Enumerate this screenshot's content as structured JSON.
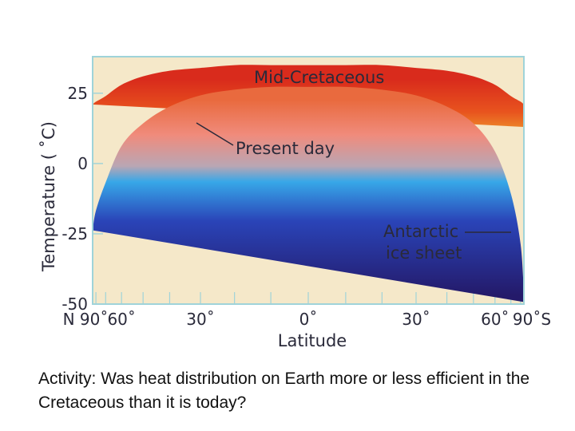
{
  "chart_data": {
    "type": "line",
    "xlabel": "Latitude",
    "ylabel": "Temperature ( ˚C)",
    "x_tick_labels": [
      "N 90˚",
      "60˚",
      "30˚",
      "0˚",
      "30˚",
      "60˚",
      "90˚S"
    ],
    "x_tick_values": [
      -90,
      -60,
      -30,
      0,
      30,
      60,
      90
    ],
    "y_tick_labels": [
      "25",
      "0",
      "-25",
      "-50"
    ],
    "y_tick_values": [
      25,
      0,
      -25,
      -50
    ],
    "xlim": [
      -90,
      90
    ],
    "ylim": [
      -50,
      38
    ],
    "x_scale": "sine of latitude",
    "grid": false,
    "background_color": "#f5e8c9",
    "frame_color": "#9fd3d9",
    "series": [
      {
        "name": "Mid-Cretaceous",
        "x": [
          -90,
          -80,
          -70,
          -60,
          -50,
          -40,
          -30,
          -20,
          -10,
          0,
          10,
          20,
          30,
          40,
          50,
          60,
          70,
          80,
          90
        ],
        "y": [
          17,
          18,
          20,
          24,
          27,
          29,
          30,
          31,
          31,
          31,
          31,
          31,
          30,
          29,
          27,
          24,
          20,
          18,
          17
        ],
        "band_width": 8
      },
      {
        "name": "Present day",
        "x": [
          -90,
          -80,
          -70,
          -60,
          -50,
          -40,
          -30,
          -20,
          -10,
          0,
          10,
          20,
          30,
          40,
          50,
          60,
          70,
          80,
          90
        ],
        "y": [
          -25,
          -18,
          -8,
          5,
          13,
          19,
          23,
          25,
          26,
          26,
          26,
          25,
          23,
          19,
          13,
          3,
          -12,
          -30,
          -48
        ],
        "band_width": 2.5
      }
    ],
    "annotations": [
      "Mid-Cretaceous",
      "Present day",
      "Antarctic",
      "ice sheet"
    ]
  },
  "activity_text": "Activity:  Was heat distribution on Earth more or less efficient in the Cretaceous than it is today?"
}
